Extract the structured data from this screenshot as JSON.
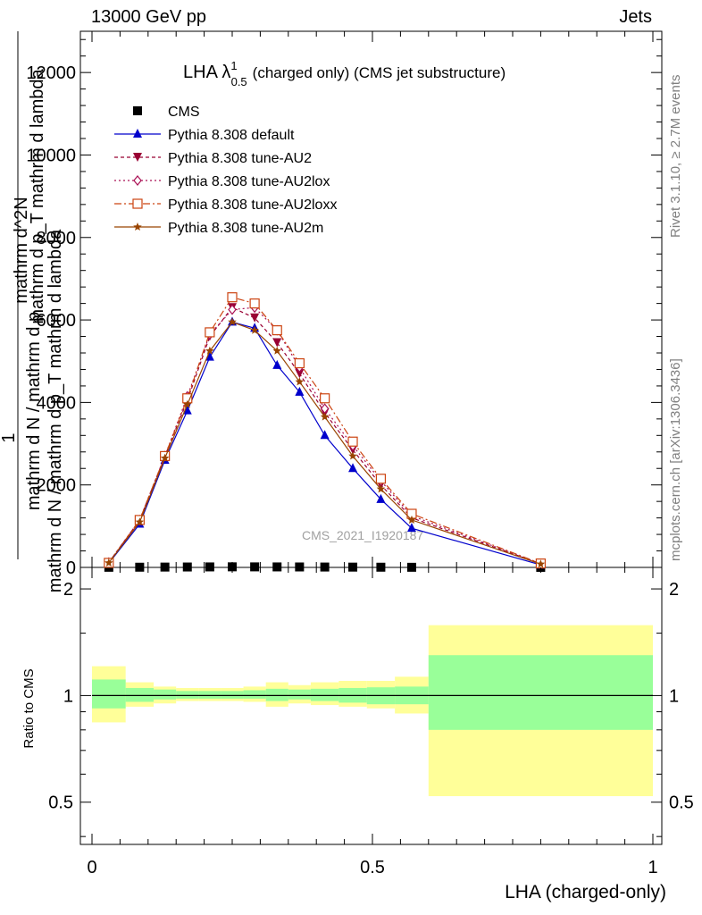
{
  "header": {
    "left": "13000 GeV pp",
    "right": "Jets"
  },
  "side_labels": {
    "rivet": "Rivet 3.1.10, ≥ 2.7M events",
    "mcplots": "mcplots.cern.ch [arXiv:1306.3436]"
  },
  "watermark": "CMS_2021_I1920187",
  "chart_data": [
    {
      "type": "line",
      "title": "LHA λ",
      "title_superscript": "1",
      "title_subscript": "0.5",
      "title_suffix": "(charged only) (CMS jet substructure)",
      "xlabel": "LHA (charged-only)",
      "ylabel_numerator": "1",
      "ylabel_denominator_lines": [
        "mathrm d N / mathrm d p",
        "mathrm d N / mathrm d p_T mathrm d lambda"
      ],
      "ylabel_top_lines": [
        "mathrm d^2N",
        "mathrm d p_T mathrm d lambda"
      ],
      "xlim": [
        0,
        1
      ],
      "ylim": [
        0,
        13000
      ],
      "yticks": [
        0,
        2000,
        4000,
        6000,
        8000,
        10000,
        12000
      ],
      "ytick_labels": [
        "0",
        "2000",
        "4000",
        "6000",
        "8000",
        "10000",
        "12000"
      ],
      "x": [
        0.03,
        0.085,
        0.13,
        0.17,
        0.21,
        0.25,
        0.29,
        0.33,
        0.37,
        0.415,
        0.465,
        0.515,
        0.57,
        0.8
      ],
      "legend": "top-left",
      "series": [
        {
          "name": "CMS",
          "color": "#000000",
          "marker": "square",
          "dash": "",
          "values": [
            3,
            5,
            8,
            10,
            12,
            14,
            13,
            12,
            11,
            9,
            7,
            5,
            3,
            1
          ]
        },
        {
          "name": "Pythia 8.308 default",
          "color": "#0000cc",
          "marker": "triangle-up",
          "dash": "",
          "values": [
            100,
            1050,
            2600,
            3800,
            5100,
            5950,
            5800,
            4900,
            4250,
            3200,
            2400,
            1650,
            950,
            60
          ]
        },
        {
          "name": "Pythia 8.308 tune-AU2",
          "color": "#990033",
          "marker": "triangle-down",
          "dash": "4,3",
          "values": [
            120,
            1150,
            2700,
            4050,
            5600,
            6300,
            6050,
            5450,
            4700,
            3750,
            2850,
            2000,
            1200,
            90
          ]
        },
        {
          "name": "Pythia 8.308 tune-AU2lox",
          "color": "#aa1155",
          "marker": "diamond-open",
          "dash": "2,3",
          "values": [
            120,
            1150,
            2700,
            4150,
            5650,
            6250,
            6300,
            5750,
            4850,
            3850,
            2950,
            2100,
            1250,
            90
          ]
        },
        {
          "name": "Pythia 8.308 tune-AU2loxx",
          "color": "#cc4411",
          "marker": "square-open",
          "dash": "8,3,2,3",
          "values": [
            110,
            1150,
            2700,
            4100,
            5700,
            6550,
            6400,
            5750,
            4950,
            4100,
            3050,
            2150,
            1300,
            95
          ]
        },
        {
          "name": "Pythia 8.308 tune-AU2m",
          "color": "#994400",
          "marker": "star",
          "dash": "",
          "values": [
            110,
            1100,
            2650,
            3950,
            5250,
            5950,
            5750,
            5250,
            4500,
            3650,
            2700,
            1900,
            1150,
            80
          ]
        }
      ]
    },
    {
      "type": "area",
      "ylabel": "Ratio to CMS",
      "xlim": [
        0,
        1
      ],
      "ylim": [
        0.38,
        2.3
      ],
      "log_y": true,
      "yticks": [
        0.5,
        1,
        2
      ],
      "ytick_labels": [
        "0.5",
        "1",
        "2"
      ],
      "xticks": [
        0,
        0.5,
        1
      ],
      "xtick_labels": [
        "0",
        "0.5",
        "1"
      ],
      "bin_edges": [
        0,
        0.06,
        0.11,
        0.15,
        0.19,
        0.23,
        0.27,
        0.31,
        0.35,
        0.39,
        0.44,
        0.49,
        0.54,
        0.6,
        1.0
      ],
      "band_total_colour": "#ffff99",
      "band_stat_colour": "#99ff99",
      "band_total_low": [
        0.84,
        0.93,
        0.95,
        0.965,
        0.965,
        0.965,
        0.96,
        0.93,
        0.95,
        0.94,
        0.93,
        0.92,
        0.89,
        0.52
      ],
      "band_total_high": [
        1.21,
        1.09,
        1.06,
        1.05,
        1.05,
        1.05,
        1.06,
        1.09,
        1.07,
        1.09,
        1.1,
        1.1,
        1.13,
        1.58
      ],
      "band_stat_low": [
        0.92,
        0.96,
        0.975,
        0.98,
        0.98,
        0.98,
        0.98,
        0.965,
        0.975,
        0.965,
        0.955,
        0.945,
        0.945,
        0.8
      ],
      "band_stat_high": [
        1.11,
        1.05,
        1.04,
        1.03,
        1.03,
        1.03,
        1.035,
        1.045,
        1.04,
        1.045,
        1.05,
        1.055,
        1.06,
        1.3
      ],
      "reference": 1
    }
  ]
}
